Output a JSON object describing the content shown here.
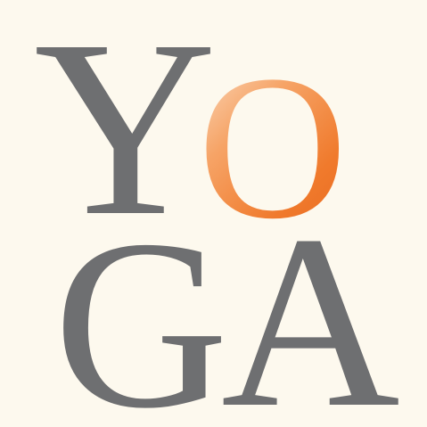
{
  "logo": {
    "letters": {
      "y": "Y",
      "o": "O",
      "g": "G",
      "a": "A"
    },
    "colors": {
      "background": "#FDF9EE",
      "gray": "#6E6F71",
      "orange_dark": "#E8681E",
      "orange_light": "#FBE3CC"
    }
  }
}
